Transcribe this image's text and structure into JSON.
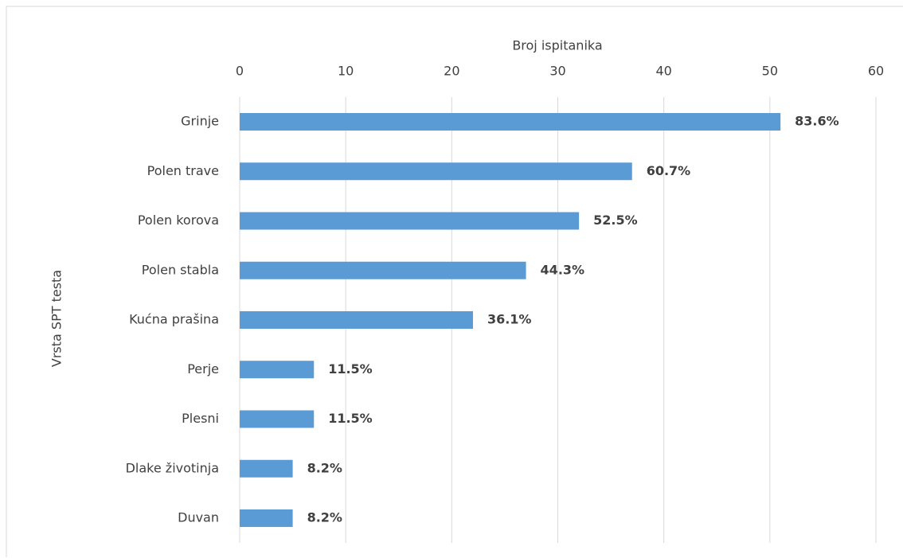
{
  "chart_data": {
    "type": "bar",
    "orientation": "horizontal",
    "x_label": "Broj ispitanika",
    "y_label": "Vrsta SPT testa",
    "categories": [
      "Grinje",
      "Polen trave",
      "Polen korova",
      "Polen stabla",
      "Kućna prašina",
      "Perje",
      "Plesni",
      "Dlake životinja",
      "Duvan"
    ],
    "values": [
      51,
      37,
      32,
      27,
      22,
      7,
      7,
      5,
      5
    ],
    "data_labels": [
      "83.6%",
      "60.7%",
      "52.5%",
      "44.3%",
      "36.1%",
      "11.5%",
      "11.5%",
      "8.2%",
      "8.2%"
    ],
    "color": "#5b9bd5",
    "xlim": [
      0,
      60
    ],
    "xticks": [
      0,
      10,
      20,
      30,
      40,
      50,
      60
    ],
    "grid": true
  }
}
